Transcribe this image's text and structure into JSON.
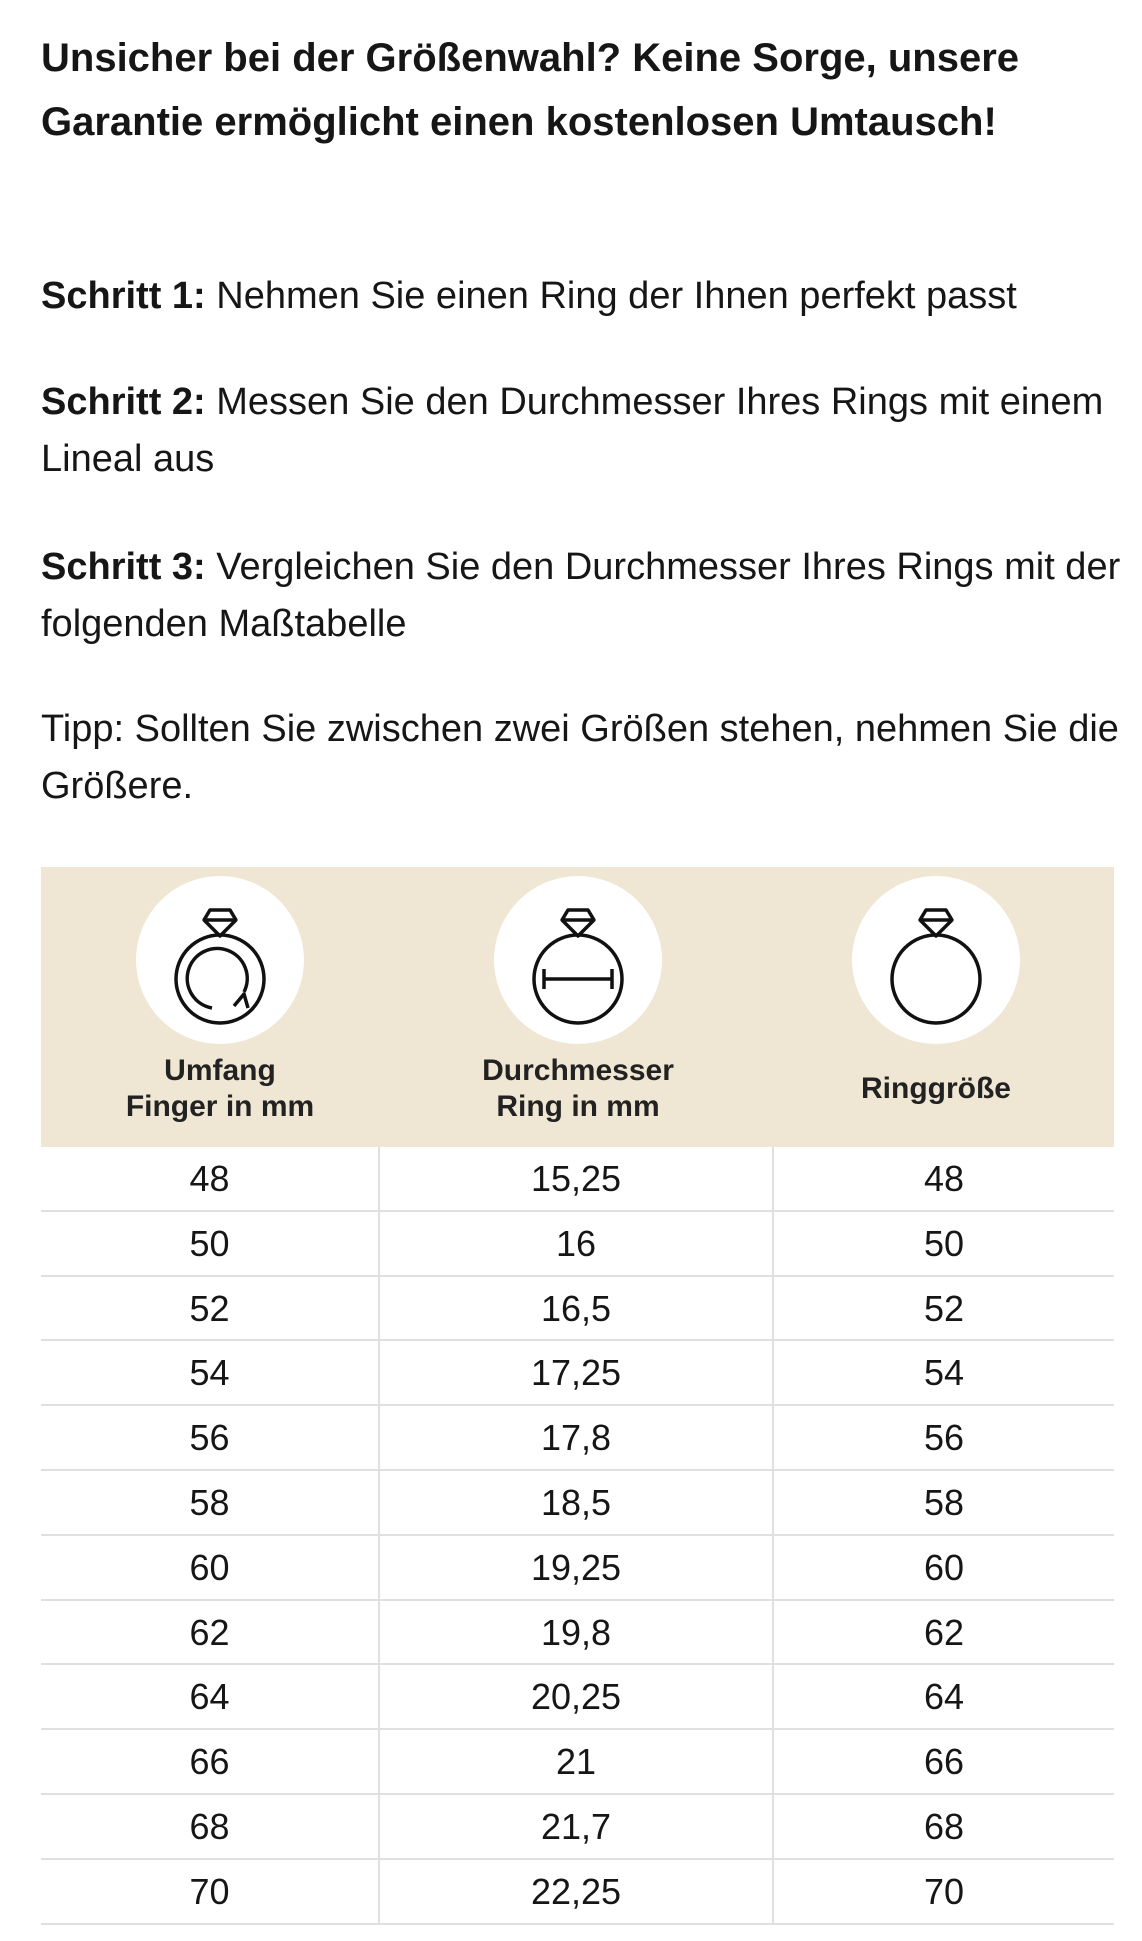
{
  "header": {
    "title": "Unsicher bei der Größenwahl? Keine Sorge, unsere Garantie ermöglicht einen kostenlosen Umtausch!"
  },
  "steps": [
    {
      "label": "Schritt 1:",
      "text": "Nehmen Sie einen Ring der Ihnen perfekt passt"
    },
    {
      "label": "Schritt 2:",
      "text": "Messen Sie den Durchmesser Ihres Rings mit einem Lineal aus"
    },
    {
      "label": "Schritt 3:",
      "text": "Vergleichen Sie den Durchmesser Ihres Rings mit der folgenden Maßtabelle"
    }
  ],
  "tip": "Tipp: Sollten Sie zwischen zwei Größen stehen, nehmen Sie die Größere.",
  "table": {
    "headers": [
      "Umfang\nFinger in mm",
      "Durchmesser\nRing in mm",
      "Ringgröße"
    ],
    "rows": [
      [
        "48",
        "15,25",
        "48"
      ],
      [
        "50",
        "16",
        "50"
      ],
      [
        "52",
        "16,5",
        "52"
      ],
      [
        "54",
        "17,25",
        "54"
      ],
      [
        "56",
        "17,8",
        "56"
      ],
      [
        "58",
        "18,5",
        "58"
      ],
      [
        "60",
        "19,25",
        "60"
      ],
      [
        "62",
        "19,8",
        "62"
      ],
      [
        "64",
        "20,25",
        "64"
      ],
      [
        "66",
        "21",
        "66"
      ],
      [
        "68",
        "21,7",
        "68"
      ],
      [
        "70",
        "22,25",
        "70"
      ]
    ]
  }
}
